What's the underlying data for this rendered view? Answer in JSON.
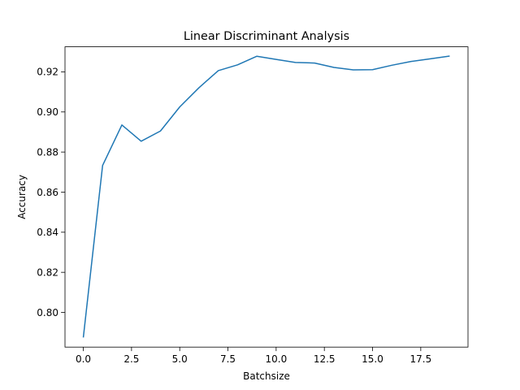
{
  "chart_data": {
    "type": "line",
    "title": "Linear Discriminant Analysis",
    "xlabel": "Batchsize",
    "ylabel": "Accuracy",
    "xlim": [
      -0.95,
      19.95
    ],
    "ylim": [
      0.7827,
      0.9325
    ],
    "xticks": [
      0.0,
      2.5,
      5.0,
      7.5,
      10.0,
      12.5,
      15.0,
      17.5
    ],
    "xtick_labels": [
      "0.0",
      "2.5",
      "5.0",
      "7.5",
      "10.0",
      "12.5",
      "15.0",
      "17.5"
    ],
    "yticks": [
      0.8,
      0.82,
      0.84,
      0.86,
      0.88,
      0.9,
      0.92
    ],
    "ytick_labels": [
      "0.80",
      "0.82",
      "0.84",
      "0.86",
      "0.88",
      "0.90",
      "0.92"
    ],
    "grid": false,
    "line_color": "#1f77b4",
    "series": [
      {
        "x": [
          0,
          1,
          2,
          3,
          4,
          5,
          6,
          7,
          8,
          9,
          10,
          11,
          12,
          13,
          14,
          15,
          16,
          17,
          18,
          19
        ],
        "values": [
          0.7875,
          0.8733,
          0.8935,
          0.8854,
          0.8905,
          0.9025,
          0.9121,
          0.9206,
          0.9235,
          0.9278,
          0.9262,
          0.9247,
          0.9244,
          0.9222,
          0.921,
          0.9211,
          0.9233,
          0.9252,
          0.9265,
          0.9279
        ]
      }
    ]
  }
}
